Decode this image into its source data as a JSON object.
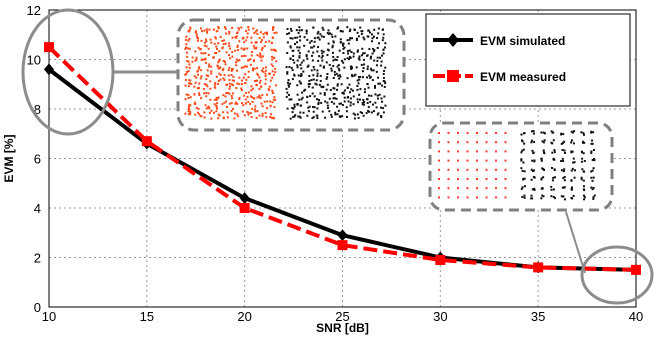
{
  "chart_data": {
    "type": "line",
    "xlabel": "SNR [dB]",
    "ylabel": "EVM [%]",
    "xlim": [
      10,
      40
    ],
    "ylim": [
      0,
      12
    ],
    "xticks": [
      10,
      15,
      20,
      25,
      30,
      35,
      40
    ],
    "yticks": [
      0,
      2,
      4,
      6,
      8,
      10,
      12
    ],
    "grid": true,
    "legend_position": "top-right",
    "x": [
      10,
      15,
      20,
      25,
      30,
      35,
      40
    ],
    "series": [
      {
        "name": "EVM simulated",
        "values": [
          9.6,
          6.6,
          4.4,
          2.9,
          2.0,
          1.6,
          1.5
        ],
        "color": "#000000",
        "marker": "diamond",
        "style": "solid"
      },
      {
        "name": "EVM measured",
        "values": [
          10.5,
          6.7,
          4.0,
          2.5,
          1.9,
          1.6,
          1.5
        ],
        "color": "#ff0000",
        "marker": "square",
        "style": "dashed"
      }
    ],
    "annotations": {
      "callouts": [
        {
          "at": [
            10,
            10.1
          ],
          "ellipse_color": "#8c8c8c"
        },
        {
          "at": [
            40,
            1.5
          ],
          "ellipse_color": "#8c8c8c"
        }
      ],
      "insets": [
        {
          "description": "constellation diagram (measured red | simulated black), low SNR",
          "border_color": "#808080"
        },
        {
          "description": "constellation diagram (measured red | simulated black), high SNR",
          "border_color": "#808080"
        }
      ]
    }
  }
}
